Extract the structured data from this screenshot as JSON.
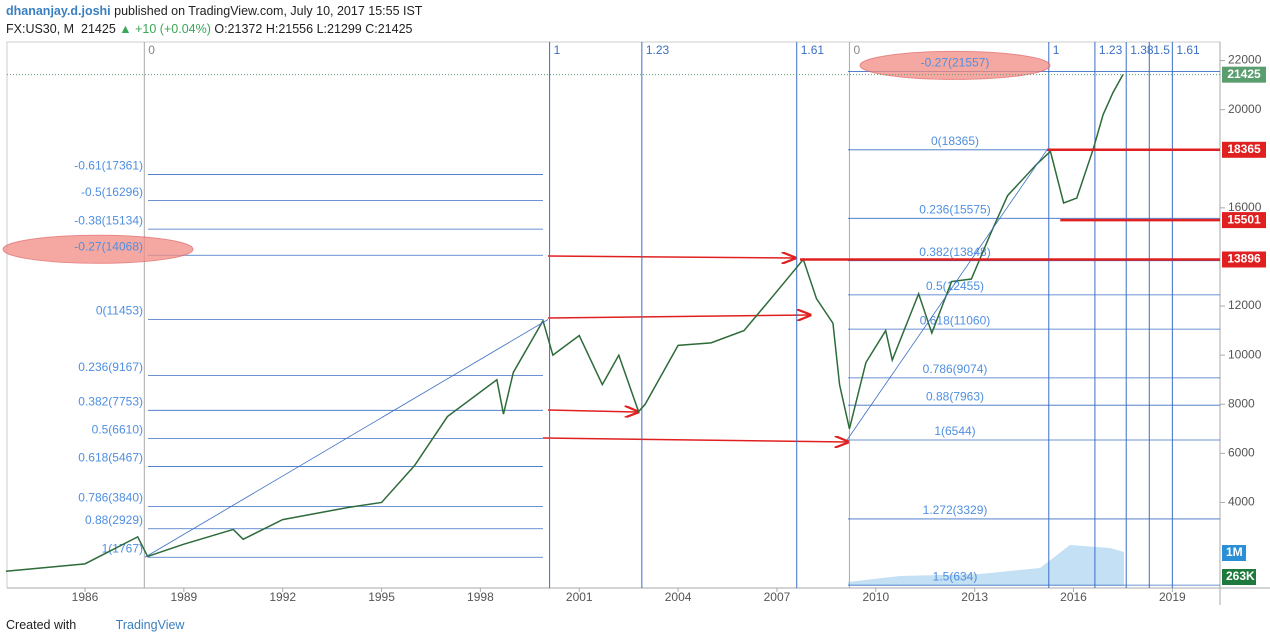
{
  "header": {
    "author": "dhananjay.d.joshi",
    "published": "published on TradingView.com, July 10, 2017 15:55 IST",
    "symbol": "FX:US30, M",
    "last": "21425",
    "change": "▲ +10 (+0.04%)",
    "ohlc": [
      "O:21372",
      "H:21556",
      "L:21299",
      "C:21425"
    ]
  },
  "price_axis": {
    "ticks": [
      4000,
      6000,
      8000,
      10000,
      12000,
      16000,
      20000,
      22000
    ],
    "last_price": 21425,
    "badges": [
      {
        "label": "18365",
        "value": 18365,
        "from_year": 2015.2
      },
      {
        "label": "15501",
        "value": 15501,
        "from_year": 2015.6
      },
      {
        "label": "13896",
        "value": 13896,
        "from_year": 2007.7
      }
    ],
    "volume_badges": [
      "1M",
      "263K"
    ]
  },
  "time_axis": {
    "ticks": [
      1986,
      1989,
      1992,
      1995,
      1998,
      2001,
      2004,
      2007,
      2010,
      2013,
      2016,
      2019
    ]
  },
  "fib_time_left": [
    {
      "label": "0",
      "year": 1987.8
    },
    {
      "label": "1",
      "year": 2000.1
    },
    {
      "label": "1.23",
      "year": 2002.9
    },
    {
      "label": "1.61",
      "year": 2007.6
    }
  ],
  "fib_time_right": [
    {
      "label": "0",
      "year": 2009.2
    },
    {
      "label": "1",
      "year": 2015.25
    },
    {
      "label": "1.23",
      "year": 2016.65
    },
    {
      "label": "1.38",
      "year": 2017.6
    },
    {
      "label": "1.5",
      "year": 2018.3
    },
    {
      "label": "1.61",
      "year": 2019.0
    }
  ],
  "fib_left": [
    {
      "label": "-0.61(17361)",
      "price": 17361
    },
    {
      "label": "-0.5(16296)",
      "price": 16296
    },
    {
      "label": "-0.38(15134)",
      "price": 15134
    },
    {
      "label": "-0.27(14068)",
      "price": 14068,
      "highlight": true
    },
    {
      "label": "0(11453)",
      "price": 11453
    },
    {
      "label": "0.236(9167)",
      "price": 9167
    },
    {
      "label": "0.382(7753)",
      "price": 7753
    },
    {
      "label": "0.5(6610)",
      "price": 6610
    },
    {
      "label": "0.618(5467)",
      "price": 5467
    },
    {
      "label": "0.786(3840)",
      "price": 3840
    },
    {
      "label": "0.88(2929)",
      "price": 2929
    },
    {
      "label": "1(1767)",
      "price": 1767
    }
  ],
  "fib_right": [
    {
      "label": "-0.27(21557)",
      "price": 21557,
      "highlight": true
    },
    {
      "label": "0(18365)",
      "price": 18365
    },
    {
      "label": "0.236(15575)",
      "price": 15575
    },
    {
      "label": "0.382(13848)",
      "price": 13848
    },
    {
      "label": "0.5(12455)",
      "price": 12455
    },
    {
      "label": "0.618(11060)",
      "price": 11060
    },
    {
      "label": "0.786(9074)",
      "price": 9074
    },
    {
      "label": "0.88(7963)",
      "price": 7963
    },
    {
      "label": "1(6544)",
      "price": 6544
    },
    {
      "label": "1.272(3329)",
      "price": 3329
    },
    {
      "label": "1.5(634)",
      "price": 634
    }
  ],
  "price_series": {
    "x": [
      1983.6,
      1986,
      1987.6,
      1987.9,
      1989,
      1990.5,
      1990.8,
      1992,
      1994,
      1995,
      1996,
      1997,
      1998.5,
      1998.7,
      1999,
      1999.9,
      2000.2,
      2001,
      2001.7,
      2002.2,
      2002.8,
      2003,
      2004,
      2005,
      2006,
      2007,
      2007.8,
      2008.2,
      2008.7,
      2008.9,
      2009.2,
      2009.7,
      2010.3,
      2010.5,
      2011.3,
      2011.7,
      2012.3,
      2012.9,
      2013.5,
      2014,
      2014.9,
      2015.3,
      2015.7,
      2016.1,
      2016.6,
      2016.9,
      2017.2,
      2017.5
    ],
    "values": [
      1200,
      1500,
      2600,
      1800,
      2300,
      2900,
      2500,
      3300,
      3800,
      4000,
      5500,
      7500,
      9000,
      7600,
      9300,
      11400,
      10000,
      10800,
      8800,
      10000,
      7700,
      8000,
      10400,
      10500,
      11000,
      12600,
      13900,
      12300,
      11300,
      8800,
      7000,
      9700,
      11000,
      9800,
      12500,
      10900,
      13000,
      13100,
      15000,
      16500,
      17800,
      18300,
      16200,
      16400,
      18400,
      19800,
      20700,
      21425
    ]
  },
  "footer": {
    "created": "Created with",
    "brand": "TradingView"
  }
}
